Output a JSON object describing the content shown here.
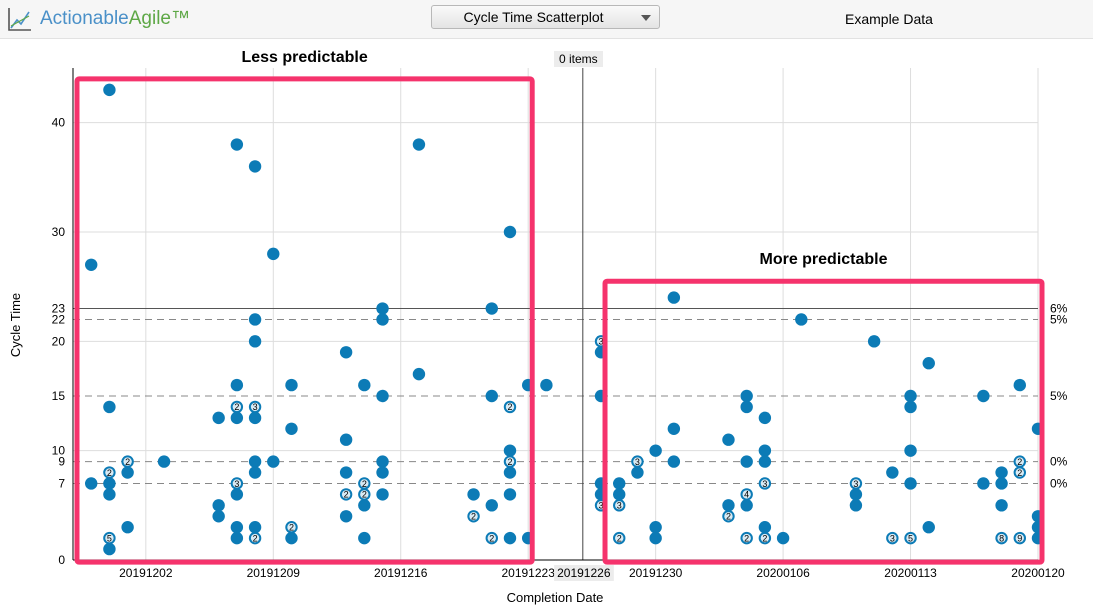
{
  "header": {
    "brand_part1": "Actionable",
    "brand_part2": "Agile™",
    "chart_select_value": "Cycle Time Scatterplot",
    "dataset_name": "Example Data",
    "items_badge": "0 items"
  },
  "annotations": {
    "left_box_label": "Less predictable",
    "right_box_label": "More predictable"
  },
  "colors": {
    "dot": "#0c7bb6",
    "highlight_box": "#f5336c",
    "brand_blue": "#4a90c8",
    "brand_green": "#5ea846"
  },
  "chart_data": {
    "type": "scatter",
    "xlabel": "Completion Date",
    "ylabel": "Cycle Time",
    "xlim": [
      "2019-11-28",
      "2020-01-20"
    ],
    "ylim": [
      0,
      45
    ],
    "x_ticks": [
      "20191202",
      "20191209",
      "20191216",
      "20191223",
      "20191226",
      "20191230",
      "20200106",
      "20200113",
      "20200120"
    ],
    "y_ticks": [
      0,
      7,
      9,
      10,
      15,
      20,
      22,
      23,
      30,
      40
    ],
    "grid": true,
    "marker_date": "20191226",
    "percentile_lines": [
      {
        "y": 23,
        "label": "6%",
        "style": "solid"
      },
      {
        "y": 22,
        "label": "5%",
        "style": "dashed"
      },
      {
        "y": 15,
        "label": "5%",
        "style": "dashed"
      },
      {
        "y": 9,
        "label": "0%",
        "style": "dashed"
      },
      {
        "y": 7,
        "label": "0%",
        "style": "dashed"
      }
    ],
    "points": [
      {
        "x": "2019-11-29",
        "y": 27
      },
      {
        "x": "2019-11-29",
        "y": 7
      },
      {
        "x": "2019-11-30",
        "y": 43
      },
      {
        "x": "2019-11-30",
        "y": 14
      },
      {
        "x": "2019-11-30",
        "y": 8,
        "count": 2
      },
      {
        "x": "2019-11-30",
        "y": 7
      },
      {
        "x": "2019-11-30",
        "y": 6
      },
      {
        "x": "2019-11-30",
        "y": 2,
        "count": 5
      },
      {
        "x": "2019-11-30",
        "y": 1
      },
      {
        "x": "2019-12-01",
        "y": 9,
        "count": 2
      },
      {
        "x": "2019-12-01",
        "y": 8
      },
      {
        "x": "2019-12-01",
        "y": 3
      },
      {
        "x": "2019-12-03",
        "y": 9
      },
      {
        "x": "2019-12-06",
        "y": 13
      },
      {
        "x": "2019-12-06",
        "y": 5
      },
      {
        "x": "2019-12-06",
        "y": 4
      },
      {
        "x": "2019-12-07",
        "y": 38
      },
      {
        "x": "2019-12-07",
        "y": 16
      },
      {
        "x": "2019-12-07",
        "y": 14,
        "count": 2
      },
      {
        "x": "2019-12-07",
        "y": 13
      },
      {
        "x": "2019-12-07",
        "y": 7,
        "count": 3
      },
      {
        "x": "2019-12-07",
        "y": 6
      },
      {
        "x": "2019-12-07",
        "y": 3
      },
      {
        "x": "2019-12-07",
        "y": 2
      },
      {
        "x": "2019-12-08",
        "y": 36
      },
      {
        "x": "2019-12-08",
        "y": 22
      },
      {
        "x": "2019-12-08",
        "y": 20
      },
      {
        "x": "2019-12-08",
        "y": 14,
        "count": 3
      },
      {
        "x": "2019-12-08",
        "y": 13
      },
      {
        "x": "2019-12-08",
        "y": 9
      },
      {
        "x": "2019-12-08",
        "y": 8
      },
      {
        "x": "2019-12-08",
        "y": 3
      },
      {
        "x": "2019-12-08",
        "y": 2,
        "count": 2
      },
      {
        "x": "2019-12-09",
        "y": 28
      },
      {
        "x": "2019-12-09",
        "y": 9
      },
      {
        "x": "2019-12-10",
        "y": 16
      },
      {
        "x": "2019-12-10",
        "y": 12
      },
      {
        "x": "2019-12-10",
        "y": 3,
        "count": 2
      },
      {
        "x": "2019-12-10",
        "y": 2
      },
      {
        "x": "2019-12-13",
        "y": 19
      },
      {
        "x": "2019-12-13",
        "y": 11
      },
      {
        "x": "2019-12-13",
        "y": 8
      },
      {
        "x": "2019-12-13",
        "y": 6,
        "count": 2
      },
      {
        "x": "2019-12-13",
        "y": 4
      },
      {
        "x": "2019-12-14",
        "y": 16
      },
      {
        "x": "2019-12-14",
        "y": 7,
        "count": 2
      },
      {
        "x": "2019-12-14",
        "y": 6,
        "count": 2
      },
      {
        "x": "2019-12-14",
        "y": 5
      },
      {
        "x": "2019-12-14",
        "y": 2
      },
      {
        "x": "2019-12-15",
        "y": 23
      },
      {
        "x": "2019-12-15",
        "y": 22
      },
      {
        "x": "2019-12-15",
        "y": 15
      },
      {
        "x": "2019-12-15",
        "y": 9
      },
      {
        "x": "2019-12-15",
        "y": 8
      },
      {
        "x": "2019-12-15",
        "y": 6
      },
      {
        "x": "2019-12-17",
        "y": 38
      },
      {
        "x": "2019-12-17",
        "y": 17
      },
      {
        "x": "2019-12-20",
        "y": 6
      },
      {
        "x": "2019-12-20",
        "y": 4,
        "count": 2
      },
      {
        "x": "2019-12-21",
        "y": 23
      },
      {
        "x": "2019-12-21",
        "y": 15
      },
      {
        "x": "2019-12-21",
        "y": 5
      },
      {
        "x": "2019-12-21",
        "y": 2,
        "count": 2
      },
      {
        "x": "2019-12-22",
        "y": 30
      },
      {
        "x": "2019-12-22",
        "y": 14,
        "count": 2
      },
      {
        "x": "2019-12-22",
        "y": 10
      },
      {
        "x": "2019-12-22",
        "y": 9,
        "count": 2
      },
      {
        "x": "2019-12-22",
        "y": 8
      },
      {
        "x": "2019-12-22",
        "y": 6
      },
      {
        "x": "2019-12-22",
        "y": 2
      },
      {
        "x": "2019-12-23",
        "y": 16
      },
      {
        "x": "2019-12-23",
        "y": 2
      },
      {
        "x": "2019-12-24",
        "y": 16
      },
      {
        "x": "2019-12-27",
        "y": 20,
        "count": 3
      },
      {
        "x": "2019-12-27",
        "y": 19
      },
      {
        "x": "2019-12-27",
        "y": 15
      },
      {
        "x": "2019-12-27",
        "y": 7
      },
      {
        "x": "2019-12-27",
        "y": 6
      },
      {
        "x": "2019-12-27",
        "y": 5,
        "count": 3
      },
      {
        "x": "2019-12-28",
        "y": 7
      },
      {
        "x": "2019-12-28",
        "y": 6
      },
      {
        "x": "2019-12-28",
        "y": 5,
        "count": 3
      },
      {
        "x": "2019-12-28",
        "y": 2,
        "count": 2
      },
      {
        "x": "2019-12-29",
        "y": 9,
        "count": 3
      },
      {
        "x": "2019-12-29",
        "y": 8
      },
      {
        "x": "2019-12-30",
        "y": 10
      },
      {
        "x": "2019-12-30",
        "y": 3
      },
      {
        "x": "2019-12-30",
        "y": 2
      },
      {
        "x": "2019-12-31",
        "y": 24
      },
      {
        "x": "2019-12-31",
        "y": 12
      },
      {
        "x": "2019-12-31",
        "y": 9
      },
      {
        "x": "2020-01-03",
        "y": 11
      },
      {
        "x": "2020-01-03",
        "y": 5
      },
      {
        "x": "2020-01-03",
        "y": 4,
        "count": 2
      },
      {
        "x": "2020-01-04",
        "y": 15
      },
      {
        "x": "2020-01-04",
        "y": 14
      },
      {
        "x": "2020-01-04",
        "y": 9
      },
      {
        "x": "2020-01-04",
        "y": 6,
        "count": 4
      },
      {
        "x": "2020-01-04",
        "y": 5
      },
      {
        "x": "2020-01-04",
        "y": 2,
        "count": 2
      },
      {
        "x": "2020-01-05",
        "y": 13
      },
      {
        "x": "2020-01-05",
        "y": 10
      },
      {
        "x": "2020-01-05",
        "y": 9
      },
      {
        "x": "2020-01-05",
        "y": 7,
        "count": 3
      },
      {
        "x": "2020-01-05",
        "y": 3
      },
      {
        "x": "2020-01-05",
        "y": 2,
        "count": 2
      },
      {
        "x": "2020-01-06",
        "y": 2
      },
      {
        "x": "2020-01-07",
        "y": 22
      },
      {
        "x": "2020-01-10",
        "y": 7,
        "count": 3
      },
      {
        "x": "2020-01-10",
        "y": 6
      },
      {
        "x": "2020-01-10",
        "y": 5
      },
      {
        "x": "2020-01-11",
        "y": 20
      },
      {
        "x": "2020-01-12",
        "y": 8
      },
      {
        "x": "2020-01-12",
        "y": 2,
        "count": 3
      },
      {
        "x": "2020-01-13",
        "y": 15
      },
      {
        "x": "2020-01-13",
        "y": 14
      },
      {
        "x": "2020-01-13",
        "y": 10
      },
      {
        "x": "2020-01-13",
        "y": 7
      },
      {
        "x": "2020-01-13",
        "y": 2,
        "count": 5
      },
      {
        "x": "2020-01-14",
        "y": 18
      },
      {
        "x": "2020-01-14",
        "y": 3
      },
      {
        "x": "2020-01-17",
        "y": 15
      },
      {
        "x": "2020-01-17",
        "y": 7
      },
      {
        "x": "2020-01-18",
        "y": 8
      },
      {
        "x": "2020-01-18",
        "y": 7
      },
      {
        "x": "2020-01-18",
        "y": 5
      },
      {
        "x": "2020-01-18",
        "y": 2,
        "count": 8
      },
      {
        "x": "2020-01-19",
        "y": 16
      },
      {
        "x": "2020-01-19",
        "y": 9,
        "count": 2
      },
      {
        "x": "2020-01-19",
        "y": 8,
        "count": 2
      },
      {
        "x": "2020-01-19",
        "y": 2,
        "count": 9
      },
      {
        "x": "2020-01-20",
        "y": 12
      },
      {
        "x": "2020-01-20",
        "y": 4
      },
      {
        "x": "2020-01-20",
        "y": 3
      },
      {
        "x": "2020-01-20",
        "y": 2
      }
    ]
  }
}
